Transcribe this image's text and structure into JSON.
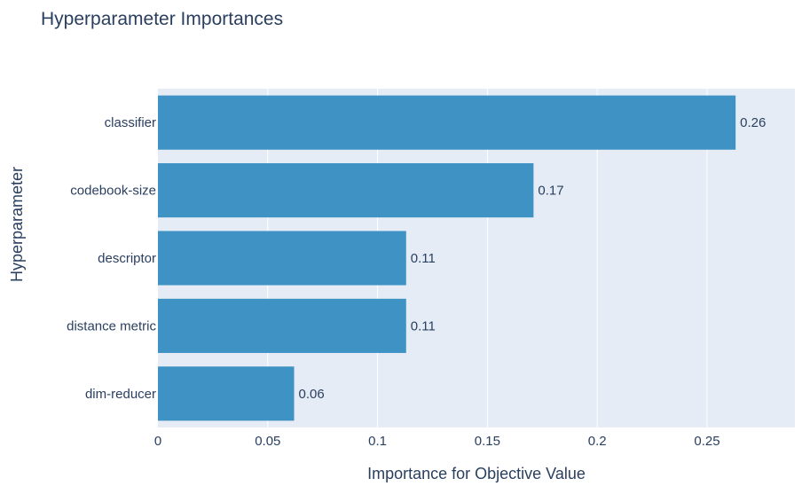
{
  "chart_data": {
    "type": "bar",
    "orientation": "horizontal",
    "title": "Hyperparameter Importances",
    "xlabel": "Importance for Objective Value",
    "ylabel": "Hyperparameter",
    "categories": [
      "classifier",
      "codebook-size",
      "descriptor",
      "distance metric",
      "dim-reducer"
    ],
    "values": [
      0.263,
      0.171,
      0.113,
      0.113,
      0.062
    ],
    "data_labels": [
      "0.26",
      "0.17",
      "0.11",
      "0.11",
      "0.06"
    ],
    "xlim": [
      0,
      0.29
    ],
    "x_ticks": [
      0,
      0.05,
      0.1,
      0.15,
      0.2,
      0.25
    ],
    "x_tick_labels": [
      "0",
      "0.05",
      "0.1",
      "0.15",
      "0.2",
      "0.25"
    ],
    "grid": true,
    "legend": false,
    "colors": {
      "bar": "#3f92c4",
      "plot_background": "#e5ecf6",
      "grid": "#ffffff",
      "text": "#2a3f5f"
    }
  }
}
